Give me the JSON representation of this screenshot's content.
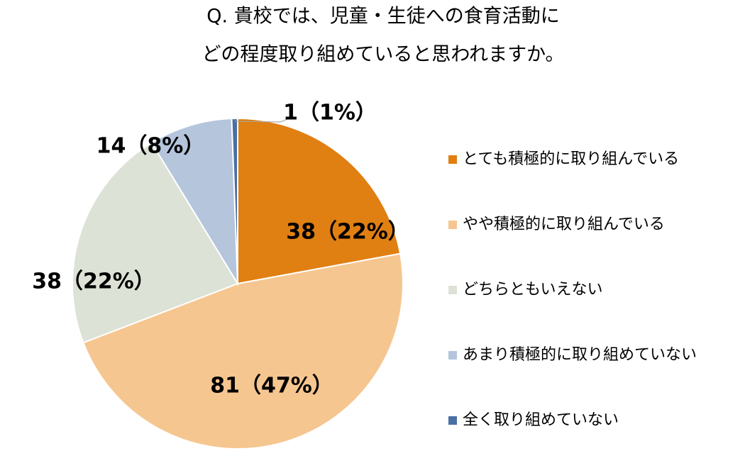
{
  "chart_data": {
    "type": "pie",
    "title": [
      "Q.  貴校では、児童・生徒への食育活動に",
      "どの程度取り組めていると思われますか。"
    ],
    "categories": [
      "とても積極的に取り組んでいる",
      "やや積極的に取り組んでいる",
      "どちらともいえない",
      "あまり積極的に取り組めていない",
      "全く取り組めていない"
    ],
    "values": [
      38,
      81,
      38,
      14,
      1
    ],
    "value_labels": [
      "38（22%）",
      "81（47%）",
      "38（22%）",
      "14（8%）",
      "1（1%）"
    ],
    "colors": [
      "#e07f12",
      "#f6c690",
      "#dce2d5",
      "#b4c5dc",
      "#4a6fa5"
    ],
    "legend": "right"
  }
}
